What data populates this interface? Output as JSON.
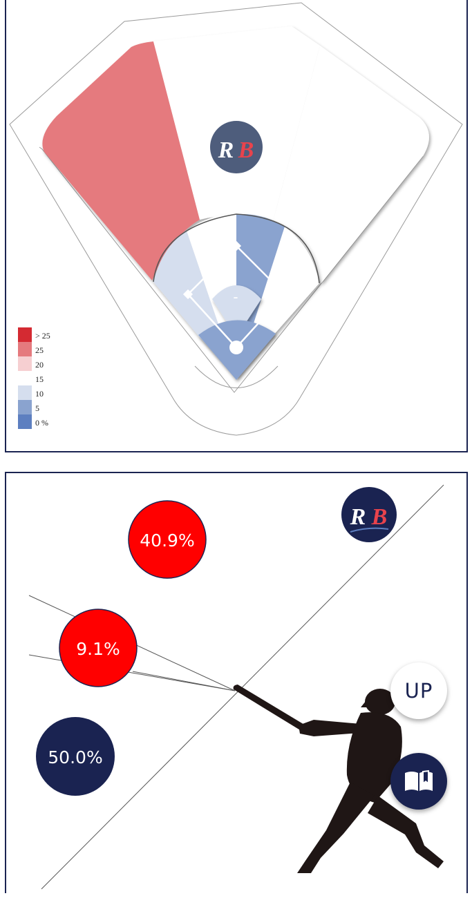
{
  "colors": {
    "navy": "#1a2351",
    "red": "#ff0000",
    "zone_high": "#e57a7e",
    "zone_low": "#d5deee",
    "zone_lowest": "#8aa3cf",
    "logo_bg": "#4e5d7c",
    "logo_accent": "#e8434c"
  },
  "logo": {
    "text": "RB"
  },
  "chart_data": [
    {
      "type": "heatmap",
      "title": "",
      "description_zones": [
        {
          "zone": "outfield-left",
          "bucket": "25"
        },
        {
          "zone": "outfield-center",
          "bucket": "15"
        },
        {
          "zone": "outfield-right",
          "bucket": "15"
        },
        {
          "zone": "infield-third",
          "bucket": "10"
        },
        {
          "zone": "infield-short",
          "bucket": "15"
        },
        {
          "zone": "infield-second",
          "bucket": "5"
        },
        {
          "zone": "infield-first",
          "bucket": "15"
        },
        {
          "zone": "pitcher",
          "bucket": "10"
        },
        {
          "zone": "catcher",
          "bucket": "5"
        }
      ],
      "pitcher_label": "-",
      "legend": {
        "placement": "bottom-left",
        "entries": [
          {
            "label": "> 25",
            "color": "#d42a32"
          },
          {
            "label": "25",
            "color": "#e57a7e"
          },
          {
            "label": "20",
            "color": "#f6cfd1"
          },
          {
            "label": "15",
            "color": "#ffffff"
          },
          {
            "label": "10",
            "color": "#d5deee"
          },
          {
            "label": "5",
            "color": "#8aa3cf"
          },
          {
            "label": "0 %",
            "color": "#5d7fc0"
          }
        ]
      }
    },
    {
      "type": "pie",
      "slices": [
        {
          "label": "40.9%",
          "value": 40.9
        },
        {
          "label": "9.1%",
          "value": 9.1
        },
        {
          "label": "50.0%",
          "value": 50.0
        }
      ]
    }
  ],
  "buttons": {
    "up_label": "UP"
  },
  "icons": {
    "up": "up-button",
    "book": "book-icon",
    "batter": "batter-silhouette-icon"
  }
}
